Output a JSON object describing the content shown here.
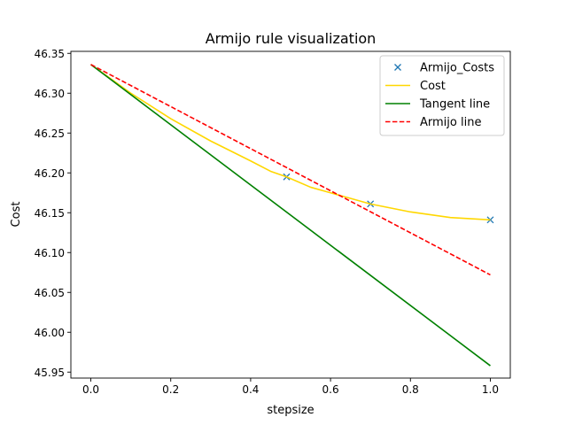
{
  "chart_data": {
    "type": "line",
    "title": "Armijo rule visualization",
    "xlabel": "stepsize",
    "ylabel": "Cost",
    "xlim": [
      -0.05,
      1.05
    ],
    "ylim": [
      45.9425,
      46.3525
    ],
    "xticks": [
      0.0,
      0.2,
      0.4,
      0.6,
      0.8,
      1.0
    ],
    "xtick_labels": [
      "0.0",
      "0.2",
      "0.4",
      "0.6",
      "0.8",
      "1.0"
    ],
    "yticks": [
      45.95,
      46.0,
      46.05,
      46.1,
      46.15,
      46.2,
      46.25,
      46.3,
      46.35
    ],
    "ytick_labels": [
      "45.95",
      "46.00",
      "46.05",
      "46.10",
      "46.15",
      "46.20",
      "46.25",
      "46.30",
      "46.35"
    ],
    "grid": false,
    "legend_position": "top-right",
    "series": [
      {
        "name": "Armijo_Costs",
        "style": "markers",
        "marker": "x",
        "color": "#1f77b4",
        "x": [
          0.49,
          0.7,
          1.0
        ],
        "y": [
          46.195,
          46.161,
          46.141
        ]
      },
      {
        "name": "Cost",
        "style": "solid",
        "color": "#ffd700",
        "x": [
          0.0,
          0.1,
          0.2,
          0.3,
          0.4,
          0.45,
          0.49,
          0.55,
          0.6,
          0.7,
          0.8,
          0.9,
          1.0
        ],
        "y": [
          46.336,
          46.3,
          46.268,
          46.24,
          46.215,
          46.202,
          46.195,
          46.182,
          46.175,
          46.161,
          46.151,
          46.144,
          46.141
        ]
      },
      {
        "name": "Tangent line",
        "style": "solid",
        "color": "#008000",
        "x": [
          0.0,
          1.0
        ],
        "y": [
          46.336,
          45.958
        ]
      },
      {
        "name": "Armijo line",
        "style": "dashed",
        "color": "#ff0000",
        "x": [
          0.0,
          1.0
        ],
        "y": [
          46.336,
          46.072
        ]
      }
    ]
  }
}
